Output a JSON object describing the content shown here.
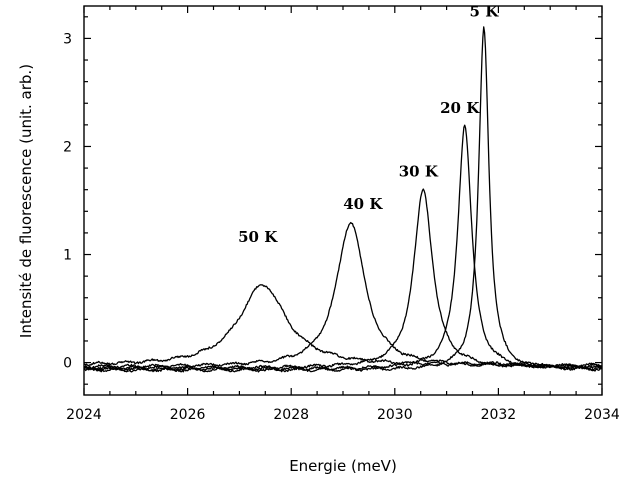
{
  "chart_data": {
    "type": "line",
    "title": "",
    "xlabel": "Energie (meV)",
    "ylabel": "Intensité de fluorescence (unit. arb.)",
    "xlim": [
      2024,
      2034
    ],
    "ylim": [
      -0.3,
      3.3
    ],
    "x_ticks": [
      "2024",
      "2026",
      "2028",
      "2030",
      "2032",
      "2034"
    ],
    "y_ticks": [
      "0",
      "1",
      "2",
      "3"
    ],
    "grid": false,
    "legend": "none",
    "series": [
      {
        "name": "5 K",
        "peak_x": 2031.72,
        "peak_y": 3.1,
        "baseline": -0.07,
        "width": 0.12,
        "label": "5 K"
      },
      {
        "name": "20 K",
        "peak_x": 2031.35,
        "peak_y": 2.2,
        "baseline": -0.06,
        "width": 0.16,
        "label": "20 K"
      },
      {
        "name": "30 K",
        "peak_x": 2030.55,
        "peak_y": 1.6,
        "baseline": -0.05,
        "width": 0.22,
        "label": "30 K"
      },
      {
        "name": "40 K",
        "peak_x": 2029.15,
        "peak_y": 1.3,
        "baseline": -0.04,
        "width": 0.33,
        "label": "40 K"
      },
      {
        "name": "50 K",
        "peak_x": 2027.45,
        "peak_y": 0.72,
        "baseline": -0.03,
        "width": 0.55,
        "label": "50 K"
      }
    ]
  }
}
